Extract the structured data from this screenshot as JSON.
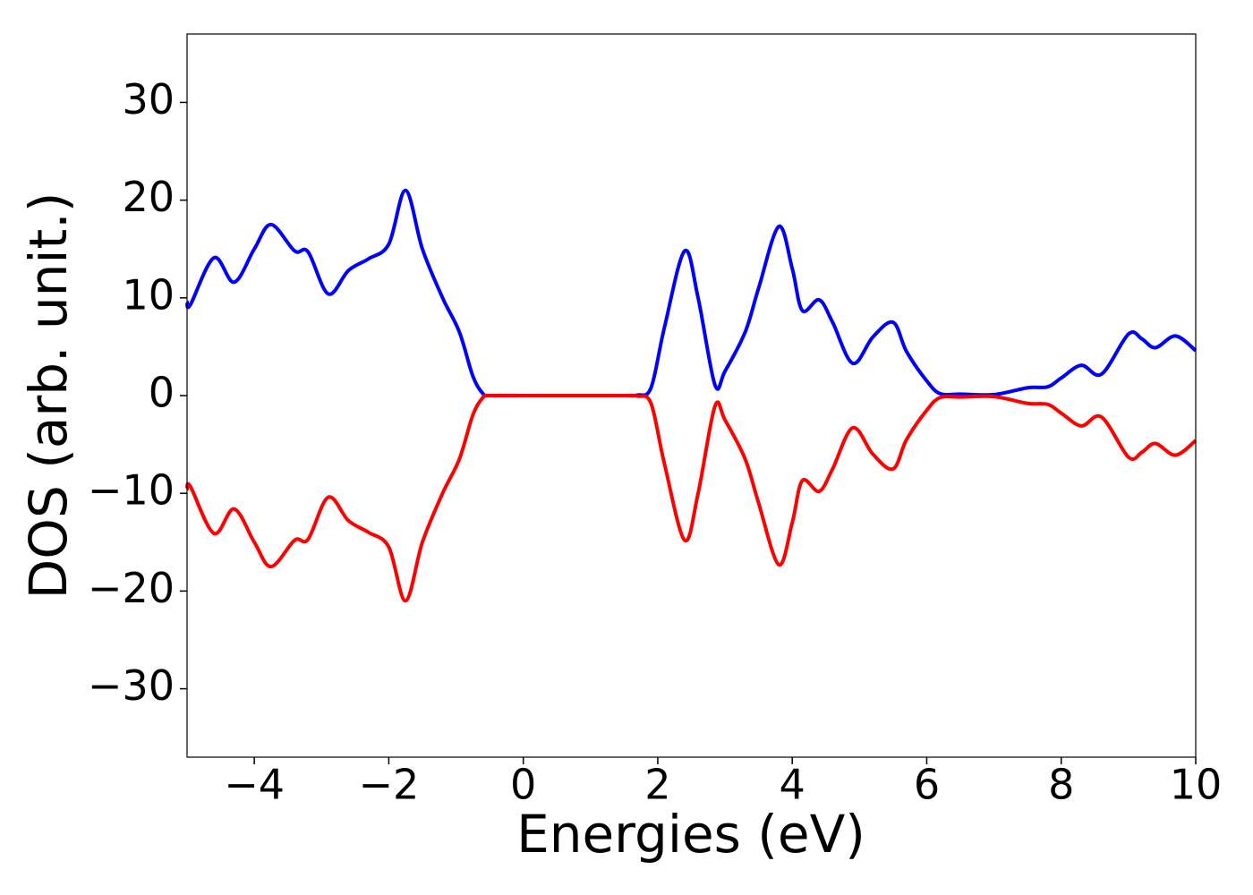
{
  "chart_data": {
    "type": "line",
    "xlabel": "Energies (eV)",
    "ylabel": "DOS (arb. unit.)",
    "x": [
      -5,
      -4.95,
      -4.6,
      -4.3,
      -4.0,
      -3.75,
      -3.4,
      -3.2,
      -2.9,
      -2.6,
      -2.3,
      -2.0,
      -1.75,
      -1.5,
      -1.2,
      -0.95,
      -0.75,
      -0.6,
      -0.5,
      0,
      0.5,
      1.0,
      1.5,
      1.7,
      1.9,
      2.1,
      2.4,
      2.6,
      2.85,
      3.0,
      3.3,
      3.5,
      3.8,
      4.0,
      4.15,
      4.4,
      4.6,
      4.9,
      5.2,
      5.5,
      5.7,
      6.0,
      6.2,
      6.5,
      7.0,
      7.5,
      7.8,
      8.0,
      8.3,
      8.6,
      9.0,
      9.2,
      9.4,
      9.7,
      10.0
    ],
    "series": [
      {
        "color": "#0000ff",
        "values": [
          9.6,
          9.3,
          14.1,
          11.6,
          15,
          17.5,
          14.8,
          14.7,
          10.4,
          12.8,
          14.0,
          15.5,
          21,
          15,
          10,
          6.5,
          2,
          0.2,
          0,
          0,
          0,
          0,
          0,
          0.05,
          0.8,
          7,
          14.8,
          10,
          1.1,
          2.5,
          6.5,
          11,
          17.3,
          13,
          8.7,
          9.8,
          7.5,
          3.3,
          6,
          7.5,
          4.5,
          1.5,
          0.2,
          0.15,
          0.1,
          0.8,
          0.9,
          1.8,
          3.1,
          2.2,
          6.3,
          5.8,
          4.9,
          6.1,
          4.6
        ]
      },
      {
        "color": "#ff0000",
        "values": [
          -9.6,
          -9.3,
          -14.1,
          -11.6,
          -15,
          -17.5,
          -14.8,
          -14.7,
          -10.4,
          -12.8,
          -14.0,
          -15.5,
          -21,
          -15,
          -10,
          -6.5,
          -2,
          -0.2,
          0,
          0,
          0,
          0,
          0,
          -0.05,
          -0.8,
          -7,
          -14.8,
          -10,
          -1.1,
          -2.5,
          -6.5,
          -11,
          -17.3,
          -13,
          -8.7,
          -9.8,
          -7.5,
          -3.3,
          -6,
          -7.5,
          -4.5,
          -1.5,
          -0.2,
          -0.15,
          -0.1,
          -0.8,
          -0.9,
          -1.8,
          -3.1,
          -2.2,
          -6.3,
          -5.8,
          -4.9,
          -6.1,
          -4.6
        ]
      }
    ],
    "xlim": [
      -5,
      10
    ],
    "ylim": [
      -37,
      37
    ],
    "xticks": [
      {
        "value": -4,
        "label": "−4"
      },
      {
        "value": -2,
        "label": "−2"
      },
      0,
      2,
      4,
      6,
      8,
      10
    ],
    "yticks": [
      {
        "value": -30,
        "label": "−30"
      },
      {
        "value": -20,
        "label": "−20"
      },
      {
        "value": -10,
        "label": "−10"
      },
      0,
      10,
      20,
      30
    ]
  }
}
